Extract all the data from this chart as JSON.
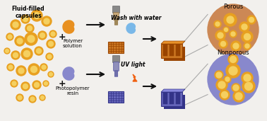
{
  "bg_color": "#f2f0ed",
  "text_fluid_filled": "Fluid-filled\ncapsules",
  "text_polymer": "Polymer\nsolution",
  "text_photopolymer": "Photopolymer\nresin",
  "text_wash": "Wash with water",
  "text_uv": "UV light",
  "text_porous": "Porous",
  "text_nonporous": "Nonporous",
  "capsule_color_outer": "#e8a020",
  "capsule_color_inner": "#f5d060",
  "orange_drop_color": "#e89020",
  "blue_drop_color": "#8888cc",
  "porous_circle_bg": "#cc8855",
  "nonporous_circle_bg": "#8888cc",
  "monolith_orange": "#cc7722",
  "monolith_orange_dark": "#994400",
  "monolith_blue": "#6666bb",
  "monolith_blue_dark": "#333388",
  "nozzle_orange_body": "#c8a878",
  "nozzle_orange_tip": "#a08858",
  "nozzle_blue_body": "#9090bb",
  "nozzle_blue_tip": "#7070aa",
  "nozzle_cap_gray": "#888888",
  "arrow_color": "#111111",
  "plus_color": "#111111",
  "water_drop_color": "#7ab8e8",
  "lightning_color": "#f06010",
  "line_color": "#aaaaaa",
  "font_size_label": 5.5,
  "font_size_step": 5.5,
  "font_size_pn": 6.0,
  "font_size_plus": 9
}
